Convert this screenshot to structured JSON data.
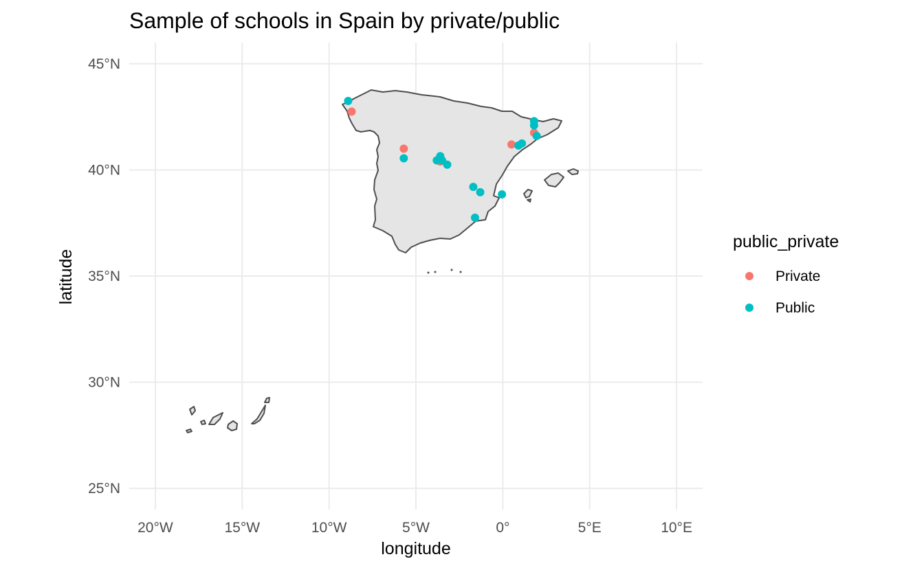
{
  "chart_data": {
    "type": "scatter",
    "title": "Sample of schools in Spain by private/public",
    "xlabel": "longitude",
    "ylabel": "latitude",
    "xlim": [
      -21.5,
      11.5
    ],
    "ylim": [
      24,
      46
    ],
    "x_ticks": [
      {
        "value": -20,
        "label": "20°W"
      },
      {
        "value": -15,
        "label": "15°W"
      },
      {
        "value": -10,
        "label": "10°W"
      },
      {
        "value": -5,
        "label": "5°W"
      },
      {
        "value": 0,
        "label": "0°"
      },
      {
        "value": 5,
        "label": "5°E"
      },
      {
        "value": 10,
        "label": "10°E"
      }
    ],
    "y_ticks": [
      {
        "value": 45,
        "label": "45°N"
      },
      {
        "value": 40,
        "label": "40°N"
      },
      {
        "value": 35,
        "label": "35°N"
      },
      {
        "value": 30,
        "label": "30°N"
      },
      {
        "value": 25,
        "label": "25°N"
      }
    ],
    "grid": true,
    "legend": {
      "title": "public_private",
      "placement": "right"
    },
    "series": [
      {
        "name": "Private",
        "color": "#F8766D",
        "points": [
          {
            "x": -8.7,
            "y": 42.75
          },
          {
            "x": -5.7,
            "y": 41.0
          },
          {
            "x": -3.6,
            "y": 40.4
          },
          {
            "x": 0.5,
            "y": 41.2
          },
          {
            "x": 1.8,
            "y": 41.75
          }
        ]
      },
      {
        "name": "Public",
        "color": "#00BFC4",
        "points": [
          {
            "x": -8.9,
            "y": 43.25
          },
          {
            "x": -5.7,
            "y": 40.55
          },
          {
            "x": -3.8,
            "y": 40.45
          },
          {
            "x": -3.6,
            "y": 40.65
          },
          {
            "x": -3.5,
            "y": 40.45
          },
          {
            "x": -3.2,
            "y": 40.25
          },
          {
            "x": -1.7,
            "y": 39.2
          },
          {
            "x": -1.3,
            "y": 38.95
          },
          {
            "x": -0.05,
            "y": 38.85
          },
          {
            "x": -1.6,
            "y": 37.75
          },
          {
            "x": 0.9,
            "y": 41.15
          },
          {
            "x": 1.1,
            "y": 41.25
          },
          {
            "x": 1.8,
            "y": 42.3
          },
          {
            "x": 1.8,
            "y": 42.1
          },
          {
            "x": 1.95,
            "y": 41.6
          }
        ]
      }
    ]
  }
}
